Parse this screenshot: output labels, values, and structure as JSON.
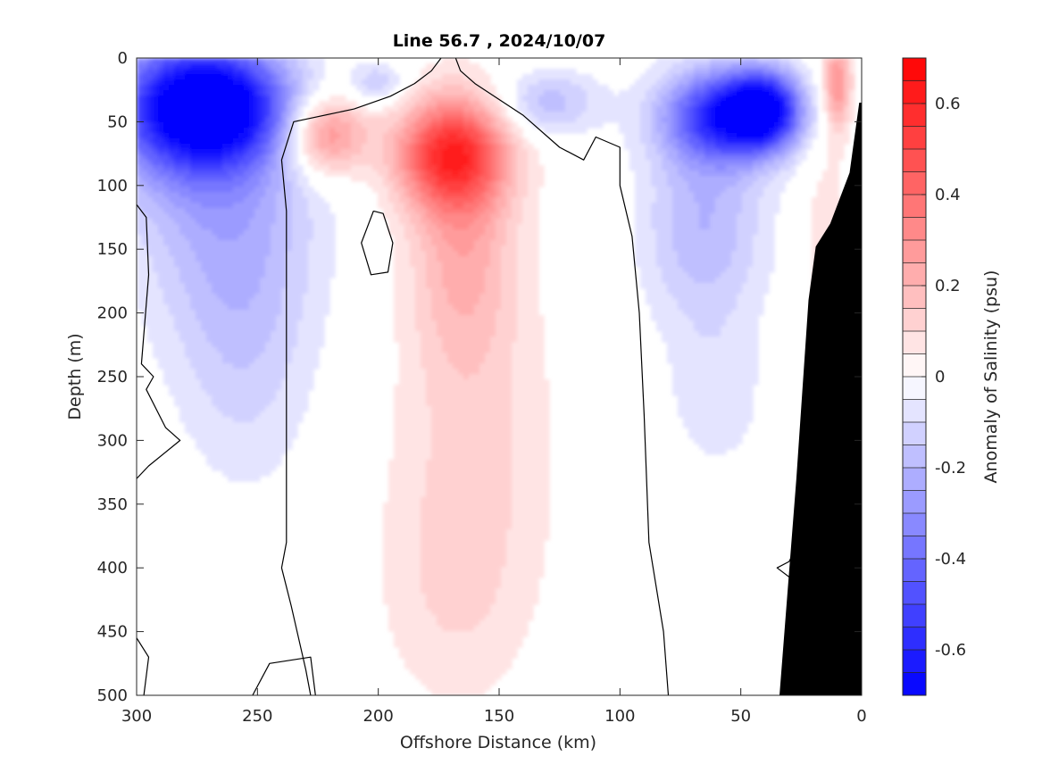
{
  "chart_data": {
    "type": "heatmap",
    "title": "Line 56.7 , 2024/10/07",
    "xlabel": "Offshore Distance (km)",
    "ylabel": "Depth (m)",
    "xlim": [
      300,
      0
    ],
    "ylim": [
      500,
      0
    ],
    "x_ticks": [
      "300",
      "250",
      "200",
      "150",
      "100",
      "50",
      "0"
    ],
    "y_ticks": [
      "0",
      "50",
      "100",
      "150",
      "200",
      "250",
      "300",
      "350",
      "400",
      "450",
      "500"
    ],
    "colorbar": {
      "label": "Anomaly of Salinity (psu)",
      "min": -0.7,
      "max": 0.7,
      "step": 0.05,
      "tick_labels": [
        "0.6",
        "0.4",
        "0.2",
        "0",
        "-0.2",
        "-0.4",
        "-0.6"
      ],
      "low_color": "#0000ff",
      "high_color": "#ff0000",
      "mid_color": "#ffffff"
    },
    "features": [
      {
        "type": "anomaly",
        "value": -0.55,
        "x_km": 268,
        "depth_m": 38,
        "sx": 22,
        "sy": 30
      },
      {
        "type": "anomaly",
        "value": -0.35,
        "x_km": 282,
        "depth_m": 40,
        "sx": 25,
        "sy": 45
      },
      {
        "type": "anomaly",
        "value": -0.2,
        "x_km": 262,
        "depth_m": 120,
        "sx": 26,
        "sy": 75
      },
      {
        "type": "anomaly",
        "value": -0.1,
        "x_km": 255,
        "depth_m": 240,
        "sx": 20,
        "sy": 75
      },
      {
        "type": "anomaly",
        "value": -0.15,
        "x_km": 200,
        "depth_m": 20,
        "sx": 8,
        "sy": 12
      },
      {
        "type": "anomaly",
        "value": 0.35,
        "x_km": 222,
        "depth_m": 60,
        "sx": 12,
        "sy": 22
      },
      {
        "type": "anomaly",
        "value": 0.5,
        "x_km": 170,
        "depth_m": 75,
        "sx": 16,
        "sy": 30
      },
      {
        "type": "anomaly",
        "value": 0.2,
        "x_km": 165,
        "depth_m": 140,
        "sx": 15,
        "sy": 70
      },
      {
        "type": "anomaly",
        "value": 0.1,
        "x_km": 160,
        "depth_m": 300,
        "sx": 25,
        "sy": 110
      },
      {
        "type": "anomaly",
        "value": 0.07,
        "x_km": 170,
        "depth_m": 420,
        "sx": 22,
        "sy": 70
      },
      {
        "type": "anomaly",
        "value": -0.18,
        "x_km": 130,
        "depth_m": 35,
        "sx": 15,
        "sy": 18
      },
      {
        "type": "anomaly",
        "value": -0.6,
        "x_km": 55,
        "depth_m": 45,
        "sx": 18,
        "sy": 25
      },
      {
        "type": "anomaly",
        "value": -0.5,
        "x_km": 40,
        "depth_m": 40,
        "sx": 10,
        "sy": 20
      },
      {
        "type": "anomaly",
        "value": -0.2,
        "x_km": 65,
        "depth_m": 130,
        "sx": 18,
        "sy": 60
      },
      {
        "type": "anomaly",
        "value": -0.08,
        "x_km": 60,
        "depth_m": 270,
        "sx": 14,
        "sy": 40
      },
      {
        "type": "anomaly",
        "value": 0.3,
        "x_km": 10,
        "depth_m": 20,
        "sx": 4,
        "sy": 25
      },
      {
        "type": "anomaly",
        "value": 0.08,
        "x_km": 15,
        "depth_m": 150,
        "sx": 8,
        "sy": 90
      }
    ],
    "bathymetry": [
      [
        34,
        500
      ],
      [
        27,
        330
      ],
      [
        22,
        190
      ],
      [
        19,
        148
      ],
      [
        13,
        130
      ],
      [
        5,
        90
      ],
      [
        1,
        35
      ],
      [
        0,
        35
      ],
      [
        0,
        500
      ]
    ],
    "zero_contours": [
      [
        [
          174,
          0
        ],
        [
          178,
          10
        ],
        [
          185,
          20
        ],
        [
          195,
          30
        ],
        [
          210,
          40
        ],
        [
          235,
          50
        ],
        [
          240,
          80
        ],
        [
          238,
          120
        ],
        [
          238,
          200
        ],
        [
          238,
          300
        ],
        [
          238,
          380
        ],
        [
          240,
          400
        ],
        [
          236,
          430
        ],
        [
          230,
          480
        ],
        [
          228,
          500
        ]
      ],
      [
        [
          168,
          0
        ],
        [
          166,
          10
        ],
        [
          160,
          20
        ],
        [
          140,
          45
        ],
        [
          125,
          70
        ],
        [
          115,
          80
        ],
        [
          110,
          62
        ],
        [
          100,
          70
        ],
        [
          100,
          100
        ],
        [
          95,
          140
        ],
        [
          92,
          200
        ],
        [
          90,
          280
        ],
        [
          88,
          380
        ],
        [
          82,
          450
        ],
        [
          80,
          500
        ]
      ],
      [
        [
          202,
          120
        ],
        [
          207,
          145
        ],
        [
          203,
          170
        ],
        [
          196,
          168
        ],
        [
          194,
          145
        ],
        [
          198,
          122
        ],
        [
          202,
          120
        ]
      ],
      [
        [
          300,
          115
        ],
        [
          296,
          125
        ],
        [
          295,
          170
        ],
        [
          298,
          240
        ],
        [
          293,
          250
        ],
        [
          296,
          260
        ],
        [
          288,
          290
        ],
        [
          282,
          300
        ],
        [
          295,
          320
        ],
        [
          300,
          330
        ]
      ],
      [
        [
          26,
          380
        ],
        [
          30,
          395
        ],
        [
          35,
          400
        ],
        [
          28,
          410
        ]
      ],
      [
        [
          300,
          455
        ],
        [
          295,
          470
        ],
        [
          297,
          500
        ]
      ],
      [
        [
          252,
          500
        ],
        [
          245,
          475
        ],
        [
          228,
          470
        ],
        [
          226,
          500
        ]
      ]
    ]
  }
}
